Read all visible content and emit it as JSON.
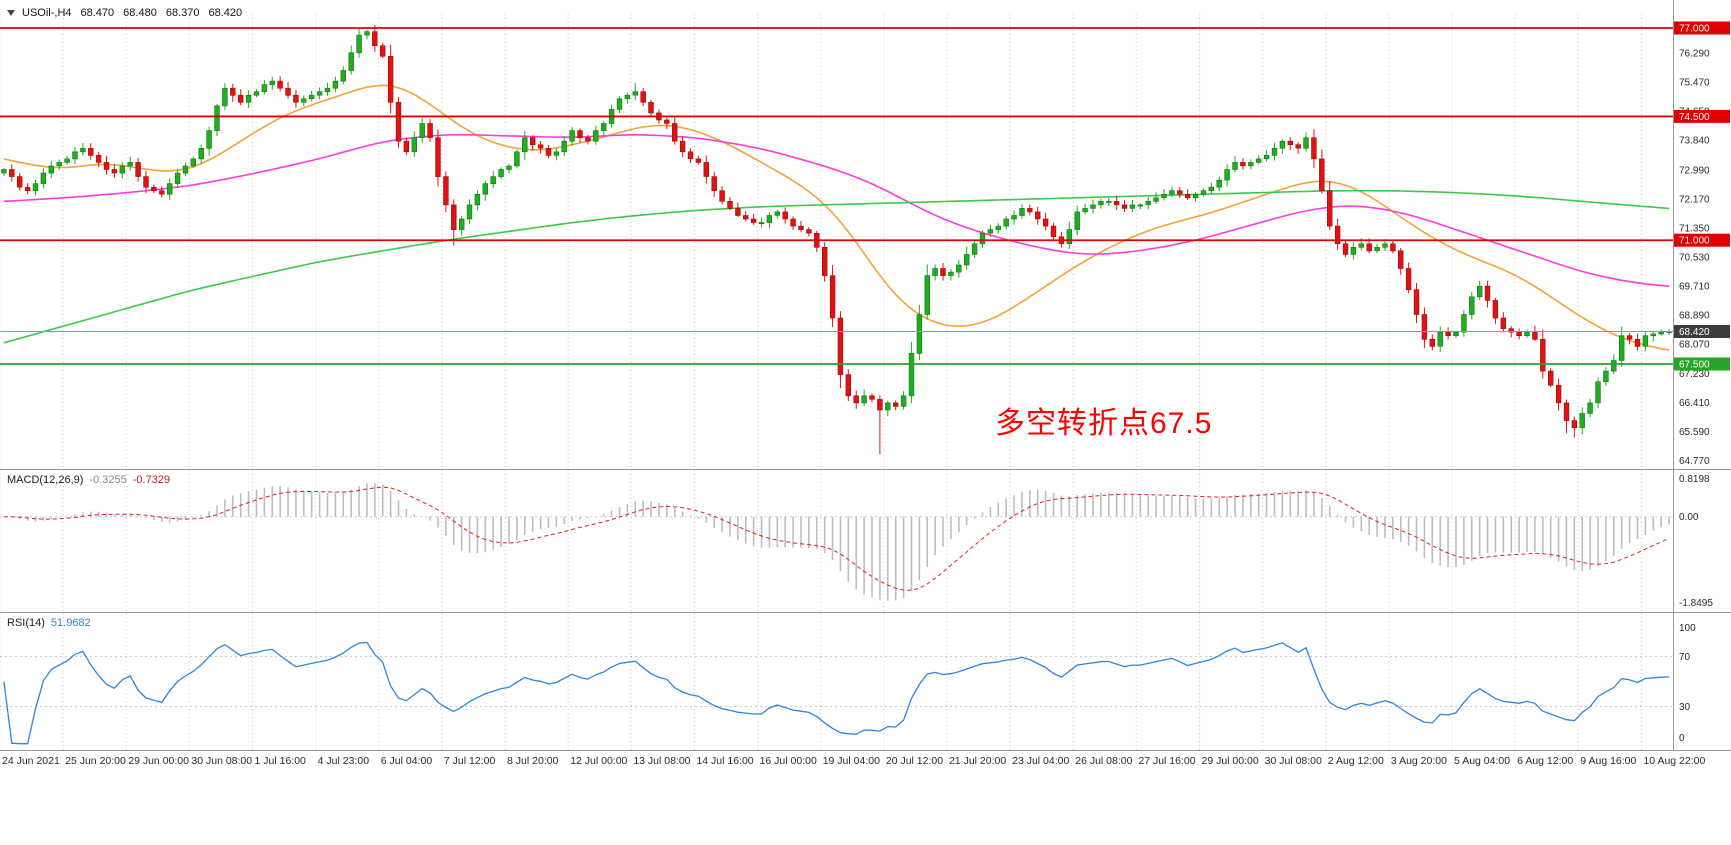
{
  "quote_bar": {
    "symbol_timeframe": "USOil-,H4",
    "open": "68.470",
    "high": "68.480",
    "low": "68.370",
    "close": "68.420"
  },
  "annotation": {
    "text": "多空转折点67.5",
    "color": "#fe0000"
  },
  "indicators": {
    "macd": {
      "label": "MACD(12,26,9)",
      "value_macd": "-0.3255",
      "value_signal": "-0.7329",
      "scale_top": "0.8198",
      "scale_zero": "0.00",
      "scale_bottom": "-1.8495"
    },
    "rsi": {
      "label": "RSI(14)",
      "value": "51.9682",
      "scale_top": "100",
      "level_upper": "70",
      "level_lower": "30",
      "scale_bottom": "0"
    }
  },
  "chart_data": {
    "type": "candlestick",
    "symbol": "USOil-",
    "timeframe": "H4",
    "current_candle_ohlc": {
      "open": 68.47,
      "high": 68.48,
      "low": 68.37,
      "close": 68.42
    },
    "x_labels": [
      "24 Jun 2021",
      "25 Jun 20:00",
      "29 Jun 00:00",
      "30 Jun 08:00",
      "1 Jul 16:00",
      "4 Jul 23:00",
      "6 Jul 04:00",
      "7 Jul 12:00",
      "8 Jul 20:00",
      "12 Jul 00:00",
      "13 Jul 08:00",
      "14 Jul 16:00",
      "16 Jul 00:00",
      "19 Jul 04:00",
      "20 Jul 12:00",
      "21 Jul 20:00",
      "23 Jul 04:00",
      "26 Jul 08:00",
      "27 Jul 16:00",
      "29 Jul 00:00",
      "30 Jul 08:00",
      "2 Aug 12:00",
      "3 Aug 20:00",
      "5 Aug 04:00",
      "6 Aug 12:00",
      "9 Aug 16:00",
      "10 Aug 22:00"
    ],
    "candles_per_label": 8,
    "y_ticks": [
      76.29,
      75.47,
      74.65,
      73.84,
      72.99,
      72.17,
      71.35,
      70.53,
      69.71,
      68.89,
      68.07,
      67.23,
      66.41,
      65.59,
      64.77
    ],
    "y_visible_range": [
      64.56,
      77.34
    ],
    "levels": [
      {
        "price": 77.0,
        "label": "77.000",
        "color": "#e00000",
        "type": "resistance"
      },
      {
        "price": 74.5,
        "label": "74.500",
        "color": "#e00000",
        "type": "resistance"
      },
      {
        "price": 71.0,
        "label": "71.000",
        "color": "#e00000",
        "type": "resistance"
      },
      {
        "price": 67.5,
        "label": "67.500",
        "color": "#27a427",
        "type": "support"
      }
    ],
    "current_price": {
      "value": 68.42,
      "label": "68.420",
      "line_color": "#6fa8a8",
      "badge_color": "#3d3d3d"
    },
    "first_open": 72.9,
    "closes": [
      73.0,
      72.8,
      72.5,
      72.4,
      72.6,
      72.9,
      73.1,
      73.2,
      73.3,
      73.5,
      73.6,
      73.4,
      73.2,
      73.0,
      72.9,
      73.1,
      73.2,
      72.8,
      72.5,
      72.4,
      72.3,
      72.6,
      72.9,
      73.1,
      73.3,
      73.6,
      74.1,
      74.8,
      75.3,
      75.1,
      74.9,
      75.1,
      75.2,
      75.4,
      75.5,
      75.3,
      75.1,
      74.9,
      75.0,
      75.1,
      75.2,
      75.3,
      75.5,
      75.8,
      76.3,
      76.8,
      76.9,
      76.5,
      76.2,
      74.9,
      73.8,
      73.5,
      73.9,
      74.3,
      73.9,
      72.8,
      72.0,
      71.3,
      71.6,
      72.0,
      72.3,
      72.6,
      72.8,
      73.0,
      73.1,
      73.5,
      73.9,
      73.7,
      73.6,
      73.4,
      73.5,
      73.8,
      74.1,
      73.9,
      73.8,
      74.1,
      74.3,
      74.7,
      75.0,
      75.1,
      75.2,
      74.9,
      74.6,
      74.4,
      74.3,
      73.8,
      73.5,
      73.3,
      73.2,
      72.8,
      72.4,
      72.1,
      71.9,
      71.7,
      71.6,
      71.5,
      71.5,
      71.7,
      71.8,
      71.6,
      71.4,
      71.3,
      71.2,
      70.8,
      70.0,
      68.8,
      67.2,
      66.6,
      66.4,
      66.6,
      66.5,
      66.2,
      66.4,
      66.3,
      66.6,
      67.8,
      68.9,
      70.0,
      70.2,
      70.0,
      70.1,
      70.3,
      70.6,
      70.9,
      71.2,
      71.3,
      71.4,
      71.6,
      71.7,
      71.9,
      71.8,
      71.6,
      71.4,
      71.1,
      70.9,
      71.3,
      71.8,
      71.9,
      72.0,
      72.1,
      72.1,
      72.0,
      71.9,
      72.0,
      72.0,
      72.1,
      72.2,
      72.3,
      72.4,
      72.3,
      72.2,
      72.3,
      72.4,
      72.5,
      72.7,
      73.0,
      73.2,
      73.1,
      73.2,
      73.3,
      73.4,
      73.6,
      73.8,
      73.7,
      73.6,
      73.9,
      73.3,
      72.4,
      71.4,
      70.9,
      70.6,
      70.8,
      70.9,
      70.7,
      70.8,
      70.9,
      70.7,
      70.2,
      69.6,
      68.9,
      68.2,
      68.0,
      68.4,
      68.3,
      68.4,
      68.9,
      69.4,
      69.7,
      69.3,
      68.8,
      68.5,
      68.4,
      68.3,
      68.4,
      68.2,
      67.3,
      66.9,
      66.4,
      65.9,
      65.7,
      66.1,
      66.4,
      67.0,
      67.3,
      67.6,
      68.3,
      68.2,
      68.0,
      68.3,
      68.35,
      68.4,
      68.42
    ],
    "wick_overrides": {
      "34": {
        "h": 75.62
      },
      "45": {
        "h": 77.0
      },
      "46": {
        "h": 76.95
      },
      "57": {
        "l": 70.85
      },
      "80": {
        "h": 75.45
      },
      "105": {
        "l": 68.55
      },
      "111": {
        "l": 64.95
      },
      "165": {
        "h": 74.05
      },
      "187": {
        "h": 69.85
      },
      "198": {
        "l": 65.55
      },
      "199": {
        "l": 65.42
      }
    },
    "moving_averages": [
      {
        "name": "ma-fast-orange",
        "color": "#f2a33c",
        "points": [
          [
            0,
            73.3
          ],
          [
            4,
            73.1
          ],
          [
            8,
            73.0
          ],
          [
            12,
            73.2
          ],
          [
            16,
            73.1
          ],
          [
            20,
            72.9
          ],
          [
            24,
            73.0
          ],
          [
            28,
            73.5
          ],
          [
            32,
            74.1
          ],
          [
            36,
            74.6
          ],
          [
            40,
            74.9
          ],
          [
            44,
            75.2
          ],
          [
            48,
            75.5
          ],
          [
            52,
            75.2
          ],
          [
            56,
            74.5
          ],
          [
            60,
            73.9
          ],
          [
            64,
            73.6
          ],
          [
            68,
            73.5
          ],
          [
            72,
            73.7
          ],
          [
            76,
            73.9
          ],
          [
            80,
            74.2
          ],
          [
            84,
            74.3
          ],
          [
            88,
            74.1
          ],
          [
            92,
            73.7
          ],
          [
            96,
            73.2
          ],
          [
            100,
            72.7
          ],
          [
            104,
            72.1
          ],
          [
            108,
            71.0
          ],
          [
            112,
            69.6
          ],
          [
            116,
            68.8
          ],
          [
            120,
            68.5
          ],
          [
            124,
            68.6
          ],
          [
            128,
            69.1
          ],
          [
            132,
            69.7
          ],
          [
            136,
            70.3
          ],
          [
            140,
            70.8
          ],
          [
            144,
            71.2
          ],
          [
            148,
            71.5
          ],
          [
            152,
            71.7
          ],
          [
            156,
            72.0
          ],
          [
            160,
            72.3
          ],
          [
            164,
            72.6
          ],
          [
            167,
            72.75
          ],
          [
            170,
            72.6
          ],
          [
            173,
            72.3
          ],
          [
            176,
            71.8
          ],
          [
            180,
            71.2
          ],
          [
            184,
            70.7
          ],
          [
            188,
            70.35
          ],
          [
            192,
            70.0
          ],
          [
            196,
            69.4
          ],
          [
            200,
            68.8
          ],
          [
            204,
            68.3
          ],
          [
            208,
            68.0
          ],
          [
            211,
            67.9
          ]
        ]
      },
      {
        "name": "ma-mid-magenta",
        "color": "#fb3ddb",
        "points": [
          [
            0,
            72.1
          ],
          [
            8,
            72.2
          ],
          [
            16,
            72.35
          ],
          [
            24,
            72.55
          ],
          [
            32,
            72.9
          ],
          [
            40,
            73.3
          ],
          [
            48,
            73.8
          ],
          [
            56,
            74.0
          ],
          [
            64,
            73.95
          ],
          [
            72,
            73.9
          ],
          [
            80,
            74.0
          ],
          [
            88,
            73.9
          ],
          [
            96,
            73.6
          ],
          [
            104,
            73.1
          ],
          [
            108,
            72.8
          ],
          [
            112,
            72.4
          ],
          [
            116,
            71.9
          ],
          [
            120,
            71.5
          ],
          [
            124,
            71.2
          ],
          [
            128,
            70.95
          ],
          [
            132,
            70.75
          ],
          [
            136,
            70.6
          ],
          [
            140,
            70.6
          ],
          [
            144,
            70.7
          ],
          [
            148,
            70.85
          ],
          [
            152,
            71.05
          ],
          [
            156,
            71.3
          ],
          [
            160,
            71.55
          ],
          [
            164,
            71.8
          ],
          [
            168,
            71.95
          ],
          [
            171,
            72.0
          ],
          [
            176,
            71.85
          ],
          [
            180,
            71.6
          ],
          [
            184,
            71.3
          ],
          [
            188,
            71.0
          ],
          [
            192,
            70.7
          ],
          [
            196,
            70.4
          ],
          [
            200,
            70.1
          ],
          [
            204,
            69.9
          ],
          [
            208,
            69.75
          ],
          [
            211,
            69.7
          ]
        ]
      },
      {
        "name": "ma-slow-green",
        "color": "#3dc94d",
        "points": [
          [
            0,
            68.1
          ],
          [
            8,
            68.6
          ],
          [
            16,
            69.1
          ],
          [
            24,
            69.6
          ],
          [
            32,
            70.0
          ],
          [
            40,
            70.4
          ],
          [
            48,
            70.7
          ],
          [
            56,
            71.0
          ],
          [
            64,
            71.25
          ],
          [
            72,
            71.5
          ],
          [
            80,
            71.7
          ],
          [
            88,
            71.85
          ],
          [
            96,
            71.95
          ],
          [
            104,
            72.0
          ],
          [
            112,
            72.05
          ],
          [
            120,
            72.1
          ],
          [
            128,
            72.15
          ],
          [
            136,
            72.2
          ],
          [
            144,
            72.25
          ],
          [
            152,
            72.3
          ],
          [
            160,
            72.35
          ],
          [
            168,
            72.4
          ],
          [
            176,
            72.4
          ],
          [
            184,
            72.35
          ],
          [
            192,
            72.25
          ],
          [
            200,
            72.1
          ],
          [
            208,
            71.95
          ],
          [
            211,
            71.9
          ]
        ]
      }
    ],
    "macd": {
      "fast": 12,
      "slow": 26,
      "signal": 9,
      "scale_max": 0.8198,
      "scale_min": -1.8495,
      "histogram_color": "#bdbdbd",
      "signal_color": "#e02020"
    },
    "rsi": {
      "period": 14,
      "levels": [
        70,
        30
      ],
      "range": [
        0,
        100
      ],
      "line_color": "#2e86d8"
    },
    "colors": {
      "bull": "#21ad21",
      "bull_border": "#0e7a0e",
      "bear": "#e11212",
      "bear_border": "#9a0a0a",
      "grid": "#c9c9c9",
      "axis_text": "#2b2b2b",
      "separator": "#9a9a9a"
    }
  }
}
